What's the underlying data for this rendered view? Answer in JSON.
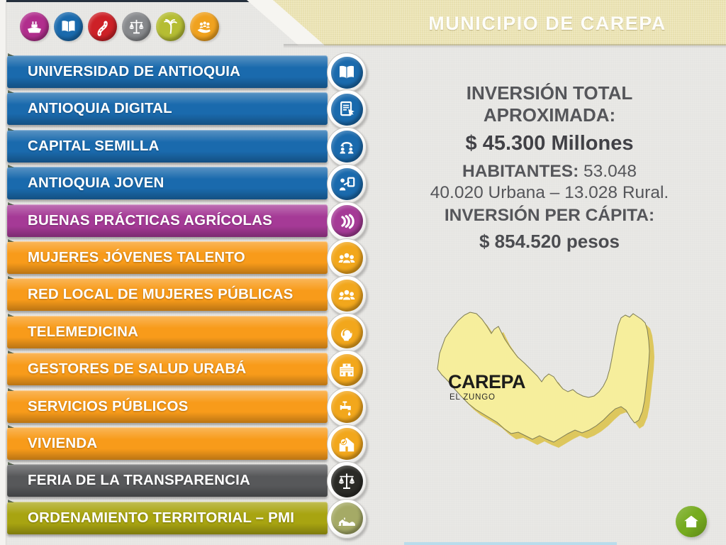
{
  "header": {
    "title": "MUNICIPIO DE CAREPA",
    "top_icons": [
      {
        "name": "ship-icon",
        "color": "#b12e8d"
      },
      {
        "name": "open-book-icon",
        "color": "#1a6aad"
      },
      {
        "name": "road-icon",
        "color": "#cd2127"
      },
      {
        "name": "scales-icon",
        "color": "#87898c"
      },
      {
        "name": "palm-tree-icon",
        "color": "#b5bd33"
      },
      {
        "name": "hand-people-icon",
        "color": "#f0a21f"
      }
    ]
  },
  "menu": {
    "items": [
      {
        "label": "UNIVERSIDAD DE ANTIOQUIA",
        "color": "#1a6aad",
        "icon": "open-book-icon"
      },
      {
        "label": "ANTIOQUIA DIGITAL",
        "color": "#1a6aad",
        "icon": "document-touch-icon"
      },
      {
        "label": "CAPITAL SEMILLA",
        "color": "#1a6aad",
        "icon": "exchange-icon"
      },
      {
        "label": "ANTIOQUIA JOVEN",
        "color": "#1a6aad",
        "icon": "person-board-icon"
      },
      {
        "label": "BUENAS PRÁCTICAS AGRÍCOLAS",
        "color": "#a53a96",
        "icon": "bananas-icon"
      },
      {
        "label": "MUJERES JÓVENES TALENTO",
        "color": "#f89b1a",
        "icon": "women-group-icon",
        "icon_bg": "#f2a71c"
      },
      {
        "label": "RED LOCAL DE MUJERES PÚBLICAS",
        "color": "#f89b1a",
        "icon": "women-group-icon",
        "icon_bg": "#f2a71c"
      },
      {
        "label": "TELEMEDICINA",
        "color": "#f89b1a",
        "icon": "head-headset-icon",
        "icon_bg": "#f2a71c"
      },
      {
        "label": "GESTORES DE SALUD URABÁ",
        "color": "#f89b1a",
        "icon": "hospital-icon",
        "icon_bg": "#f2a71c"
      },
      {
        "label": "SERVICIOS PÚBLICOS",
        "color": "#f89b1a",
        "icon": "faucet-icon",
        "icon_bg": "#f2a71c"
      },
      {
        "label": "VIVIENDA",
        "color": "#f89b1a",
        "icon": "house-check-icon",
        "icon_bg": "#f2a71c"
      },
      {
        "label": "FERIA DE LA TRANSPARENCIA",
        "color": "#57585a",
        "icon": "scales-icon",
        "icon_bg": "#2b2b27"
      },
      {
        "label": "ORDENAMIENTO TERRITORIAL – PMI",
        "color": "#a8a411",
        "icon": "house-landscape-icon",
        "icon_bg": "#a5aa66"
      }
    ]
  },
  "stats": {
    "inversion_label_line1": "INVERSIÓN TOTAL",
    "inversion_label_line2": "APROXIMADA:",
    "inversion_total": "$ 45.300 Millones",
    "habitantes_label": "HABITANTES:",
    "habitantes_value": "53.048",
    "breakdown": "40.020 Urbana – 13.028 Rural.",
    "percapita_label": "INVERSIÓN PER CÁPITA:",
    "percapita_value": "$ 854.520 pesos"
  },
  "map": {
    "name": "CAREPA",
    "sublabel": "EL ZUNGO",
    "fill": "#f6ee9c",
    "shadow": "#ddc75d",
    "outline": "#7d7c55"
  },
  "footer": {
    "home_color": "#76ab1f"
  }
}
